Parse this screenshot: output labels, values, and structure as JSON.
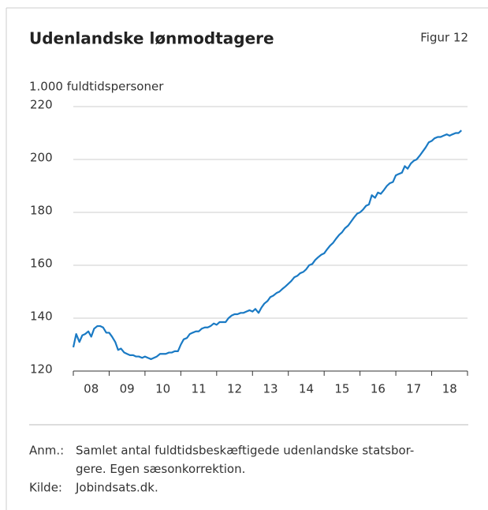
{
  "chart_data": {
    "type": "line",
    "title": "Udenlandske lønmodtagere",
    "figure_label": "Figur 12",
    "y_axis_label": "1.000 fuldtidspersoner",
    "ylim": [
      120,
      220
    ],
    "yticks": [
      120,
      140,
      160,
      180,
      200,
      220
    ],
    "grid": true,
    "xlim": [
      2008,
      2019
    ],
    "xticks": [
      2008,
      2009,
      2010,
      2011,
      2012,
      2013,
      2014,
      2015,
      2016,
      2017,
      2018,
      2019
    ],
    "xlabels": [
      {
        "value": 2008.5,
        "label": "08"
      },
      {
        "value": 2009.5,
        "label": "09"
      },
      {
        "value": 2010.5,
        "label": "10"
      },
      {
        "value": 2011.5,
        "label": "11"
      },
      {
        "value": 2012.5,
        "label": "12"
      },
      {
        "value": 2013.5,
        "label": "13"
      },
      {
        "value": 2014.5,
        "label": "14"
      },
      {
        "value": 2015.5,
        "label": "15"
      },
      {
        "value": 2016.5,
        "label": "16"
      },
      {
        "value": 2017.5,
        "label": "17"
      },
      {
        "value": 2018.5,
        "label": "18"
      }
    ],
    "x": [
      2008.0,
      2008.08,
      2008.17,
      2008.25,
      2008.33,
      2008.42,
      2008.5,
      2008.58,
      2008.67,
      2008.75,
      2008.83,
      2008.92,
      2009.0,
      2009.08,
      2009.17,
      2009.25,
      2009.33,
      2009.42,
      2009.5,
      2009.58,
      2009.67,
      2009.75,
      2009.83,
      2009.92,
      2010.0,
      2010.08,
      2010.17,
      2010.25,
      2010.33,
      2010.42,
      2010.5,
      2010.58,
      2010.67,
      2010.75,
      2010.83,
      2010.92,
      2011.0,
      2011.08,
      2011.17,
      2011.25,
      2011.33,
      2011.42,
      2011.5,
      2011.58,
      2011.67,
      2011.75,
      2011.83,
      2011.92,
      2012.0,
      2012.08,
      2012.17,
      2012.25,
      2012.33,
      2012.42,
      2012.5,
      2012.58,
      2012.67,
      2012.75,
      2012.83,
      2012.92,
      2013.0,
      2013.08,
      2013.17,
      2013.25,
      2013.33,
      2013.42,
      2013.5,
      2013.58,
      2013.67,
      2013.75,
      2013.83,
      2013.92,
      2014.0,
      2014.08,
      2014.17,
      2014.25,
      2014.33,
      2014.42,
      2014.5,
      2014.58,
      2014.67,
      2014.75,
      2014.83,
      2014.92,
      2015.0,
      2015.08,
      2015.17,
      2015.25,
      2015.33,
      2015.42,
      2015.5,
      2015.58,
      2015.67,
      2015.75,
      2015.83,
      2015.92,
      2016.0,
      2016.08,
      2016.17,
      2016.25,
      2016.33,
      2016.42,
      2016.5,
      2016.58,
      2016.67,
      2016.75,
      2016.83,
      2016.92,
      2017.0,
      2017.08,
      2017.17,
      2017.25,
      2017.33,
      2017.42,
      2017.5,
      2017.58,
      2017.67,
      2017.75,
      2017.83,
      2017.92,
      2018.0,
      2018.08,
      2018.17,
      2018.25,
      2018.33,
      2018.42,
      2018.5,
      2018.58,
      2018.67,
      2018.75,
      2018.83
    ],
    "series": [
      {
        "color": "#1a7ac4",
        "values": [
          129,
          134,
          131,
          133.5,
          134,
          135,
          133,
          136,
          137,
          137,
          136.5,
          134.5,
          134.5,
          133,
          131,
          128,
          128.5,
          127,
          126.5,
          126,
          126,
          125.5,
          125.5,
          125,
          125.5,
          125,
          124.5,
          125,
          125.5,
          126.5,
          126.5,
          126.5,
          127,
          127,
          127.5,
          127.5,
          130,
          132,
          132.5,
          134,
          134.5,
          135,
          135,
          136,
          136.5,
          136.5,
          137,
          138,
          137.5,
          138.5,
          138.5,
          138.5,
          140,
          141,
          141.5,
          141.5,
          142,
          142,
          142.5,
          143,
          142.5,
          143.5,
          142,
          144,
          145.5,
          146.5,
          148,
          148.5,
          149.5,
          150,
          151,
          152,
          153,
          154,
          155.5,
          156,
          157,
          157.5,
          158.5,
          160,
          160.5,
          162,
          163,
          164,
          164.5,
          166,
          167.5,
          168.5,
          170,
          171.5,
          172.5,
          174,
          175,
          176.5,
          178,
          179.5,
          180,
          181,
          182.5,
          183,
          186.5,
          185.5,
          187.5,
          187,
          188.5,
          190,
          191,
          191.5,
          194,
          194.5,
          195,
          197.5,
          196.5,
          198.5,
          199.5,
          200,
          201.5,
          203,
          204.5,
          206.5,
          207,
          208,
          208.5,
          208.5,
          209,
          209.5,
          209,
          209.5,
          210,
          210,
          211
        ]
      }
    ],
    "notes": [
      {
        "label": "Anm.:",
        "lines": [
          "Samlet antal fuldtidsbeskæftigede udenlandske statsbor-",
          "gere. Egen sæsonkorrektion."
        ]
      },
      {
        "label": "Kilde:",
        "lines": [
          "Jobindsats.dk."
        ]
      }
    ]
  }
}
